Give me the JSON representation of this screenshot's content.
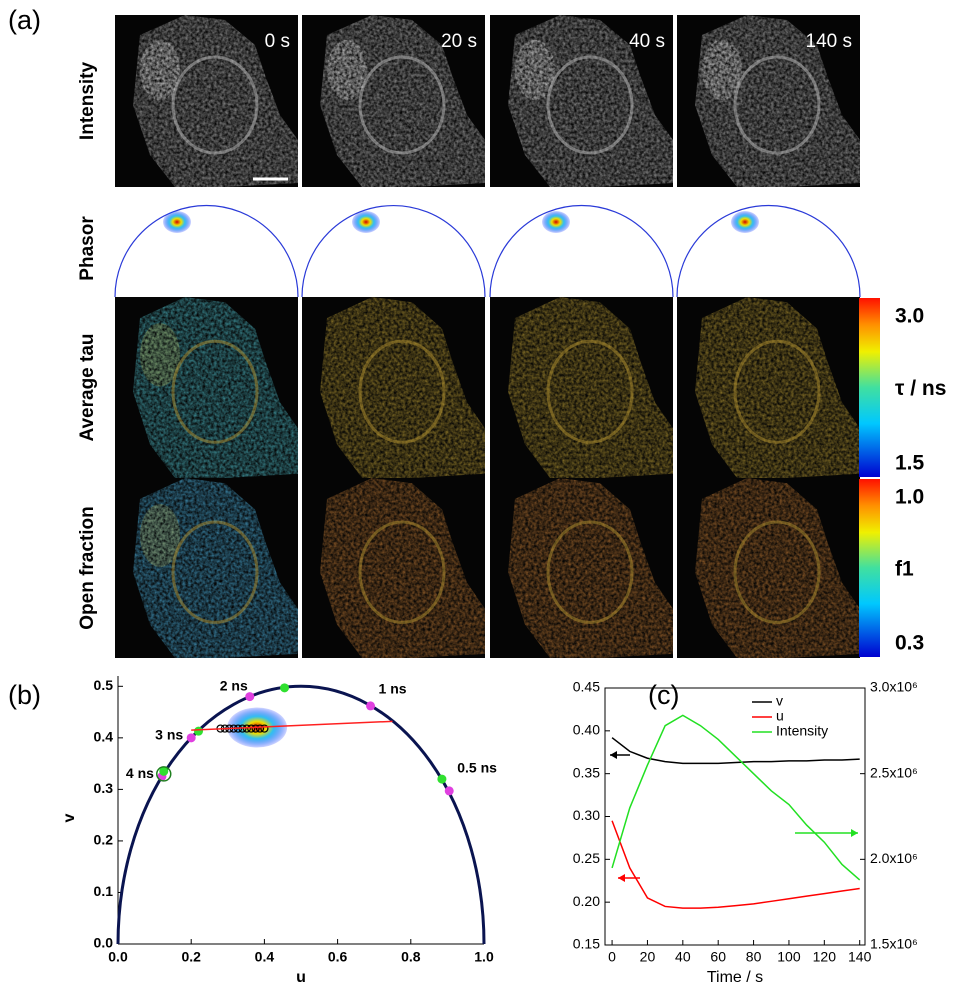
{
  "figure": {
    "panel_labels": [
      "(a)",
      "(b)",
      "(c)"
    ],
    "times": [
      "0 s",
      "20 s",
      "40 s",
      "140 s"
    ],
    "row_labels": [
      "Intensity",
      "Phasor",
      "Average tau",
      "Open fraction"
    ],
    "colorbars": [
      {
        "max": "3.0",
        "label": "τ / ns",
        "min": "1.5"
      },
      {
        "max": "1.0",
        "label": "f1",
        "min": "0.3"
      }
    ]
  },
  "chart_data": [
    {
      "type": "scatter",
      "x_label": "u",
      "y_label": "v",
      "xlim": [
        0,
        1
      ],
      "ylim": [
        0,
        0.52
      ],
      "xticks": [
        {
          "value": 0,
          "label": "0.0"
        },
        0.2,
        0.4,
        0.6,
        0.8,
        {
          "value": 1,
          "label": "1.0"
        }
      ],
      "yticks": [
        {
          "value": 0,
          "label": "0.0"
        },
        0.1,
        0.2,
        0.3,
        0.4,
        0.5
      ],
      "series": [
        {
          "color": "#e040e0",
          "x": [
            0.12,
            0.2,
            0.36,
            0.69,
            0.905
          ],
          "values": [
            0.325,
            0.4,
            0.48,
            0.462,
            0.297
          ],
          "point_labels": [
            "4 ns",
            "3 ns",
            "2 ns",
            "1 ns",
            "0.5 ns"
          ]
        },
        {
          "color": "#30e030",
          "x": [
            0.125,
            0.22,
            0.455,
            0.885
          ],
          "values": [
            0.335,
            0.413,
            0.497,
            0.32
          ]
        },
        {
          "color": "#ff2020",
          "x": [
            0.2,
            0.75
          ],
          "values": [
            0.415,
            0.432
          ]
        }
      ]
    },
    {
      "type": "line",
      "x_label": "Time / s",
      "x": [
        0,
        10,
        20,
        30,
        40,
        50,
        60,
        70,
        80,
        90,
        100,
        110,
        120,
        130,
        140
      ],
      "xlim": [
        -4,
        143
      ],
      "xticks": [
        0,
        20,
        40,
        60,
        80,
        100,
        120,
        140
      ],
      "ylim": [
        0.15,
        0.45
      ],
      "yticks": [
        0.15,
        {
          "value": 0.2,
          "label": "0.20"
        },
        0.25,
        {
          "value": 0.3,
          "label": "0.30"
        },
        0.35,
        {
          "value": 0.4,
          "label": "0.40"
        },
        0.45
      ],
      "y2lim": [
        1500000,
        3000000
      ],
      "y2ticks": [
        {
          "value": 1500000,
          "label": "1.5x10⁶"
        },
        {
          "value": 2000000,
          "label": "2.0x10⁶"
        },
        {
          "value": 2500000,
          "label": "2.5x10⁶"
        },
        {
          "value": 3000000,
          "label": "3.0x10⁶"
        }
      ],
      "series": [
        {
          "name": "v",
          "color": "#000000",
          "values": [
            0.392,
            0.376,
            0.368,
            0.364,
            0.362,
            0.362,
            0.362,
            0.363,
            0.364,
            0.364,
            0.365,
            0.365,
            0.366,
            0.366,
            0.367
          ]
        },
        {
          "name": "u",
          "color": "#ff0000",
          "values": [
            0.295,
            0.24,
            0.205,
            0.195,
            0.193,
            0.193,
            0.194,
            0.196,
            0.198,
            0.201,
            0.204,
            0.207,
            0.21,
            0.213,
            0.216
          ]
        },
        {
          "name": "Intensity",
          "color": "#22e022",
          "axis": "y2",
          "values": [
            1950000,
            2300000,
            2550000,
            2780000,
            2840000,
            2780000,
            2700000,
            2600000,
            2500000,
            2400000,
            2320000,
            2200000,
            2100000,
            1970000,
            1880000
          ]
        }
      ]
    }
  ]
}
